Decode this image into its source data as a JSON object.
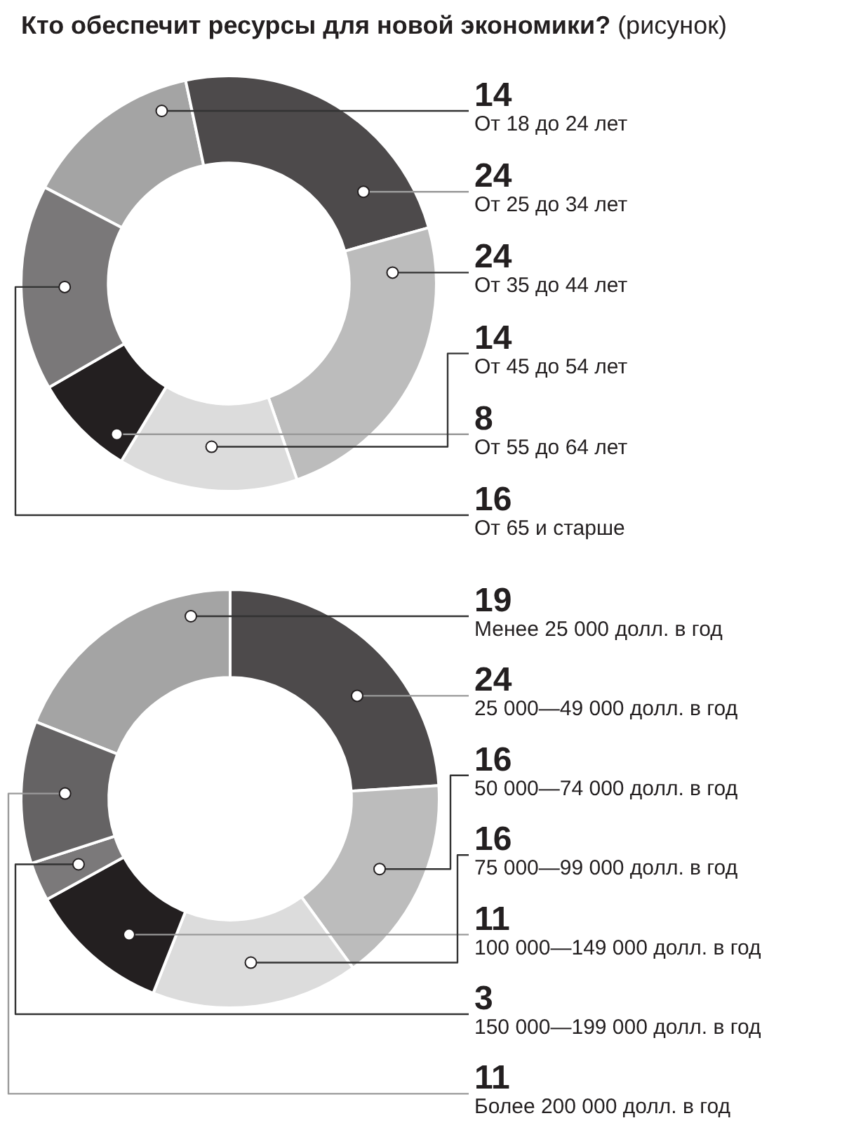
{
  "chart_data": [
    {
      "type": "donut",
      "title": "Кто обеспечит ресурсы для новой экономики?",
      "subtitle": "(рисунок)",
      "categories": [
        "От 18 до 24 лет",
        "От 25 до 34 лет",
        "От 35 до 44 лет",
        "От 45 до 54 лет",
        "От 55 до 64 лет",
        "От 65 и старше"
      ],
      "values": [
        14,
        24,
        24,
        14,
        8,
        16
      ],
      "colors": [
        "#a4a4a4",
        "#4d4a4b",
        "#bcbcbc",
        "#dcdcdc",
        "#231f20",
        "#7a7879"
      ],
      "data_labels": true
    },
    {
      "type": "donut",
      "categories": [
        "Менее 25 000 долл. в год",
        "25 000—49 000 долл. в год",
        "50 000—74 000 долл. в год",
        "75 000—99 000 долл. в год",
        "100 000—149 000 долл. в год",
        "150 000—199 000 долл. в год",
        "Более 200 000 долл. в год"
      ],
      "values": [
        19,
        24,
        16,
        16,
        11,
        3,
        11
      ],
      "colors": [
        "#a4a4a4",
        "#4d4a4b",
        "#bcbcbc",
        "#dcdcdc",
        "#231f20",
        "#7b797a",
        "#656364"
      ],
      "data_labels": true
    }
  ]
}
